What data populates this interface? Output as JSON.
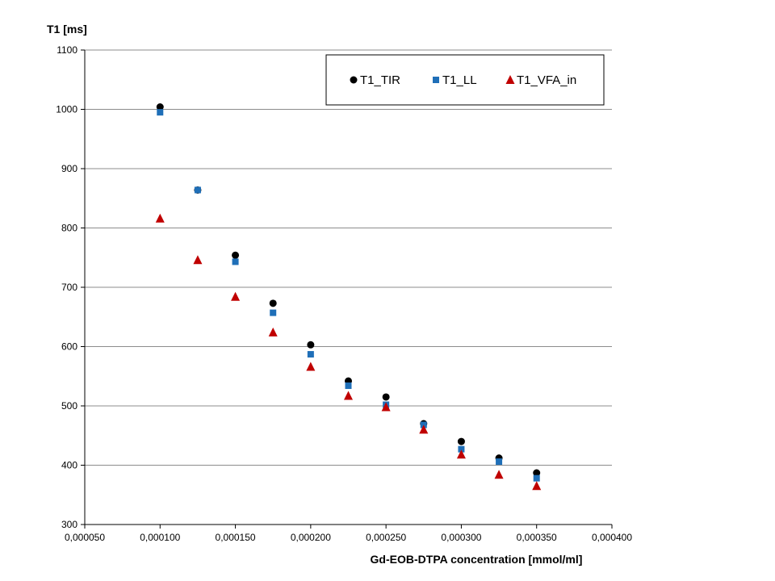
{
  "chart_data": {
    "type": "scatter",
    "xlabel": "Gd-EOB-DTPA concentration [mmol/ml]",
    "ylabel": "T1 [ms]",
    "xlim": [
      5e-05,
      0.0004
    ],
    "ylim": [
      300,
      1100
    ],
    "x_ticks": [
      "0,000050",
      "0,000100",
      "0,000150",
      "0,000200",
      "0,000250",
      "0,000300",
      "0,000350",
      "0,000400"
    ],
    "y_ticks": [
      "300",
      "400",
      "500",
      "600",
      "700",
      "800",
      "900",
      "1000",
      "1100"
    ],
    "grid": "horizontal",
    "legend_placement": "top-right",
    "x": [
      0.0001,
      0.000125,
      0.00015,
      0.000175,
      0.0002,
      0.000225,
      0.00025,
      0.000275,
      0.0003,
      0.000325,
      0.00035
    ],
    "series": [
      {
        "name": "T1_TIR",
        "marker": "circle",
        "color": "#000000",
        "values": [
          1004,
          864,
          754,
          673,
          603,
          542,
          515,
          470,
          440,
          412,
          387
        ]
      },
      {
        "name": "T1_LL",
        "marker": "square",
        "color": "#1f6fb8",
        "values": [
          995,
          864,
          743,
          657,
          587,
          534,
          502,
          468,
          427,
          406,
          378
        ]
      },
      {
        "name": "T1_VFA_in",
        "marker": "triangle",
        "color": "#c00000",
        "values": [
          816,
          746,
          684,
          624,
          566,
          517,
          498,
          460,
          418,
          384,
          365
        ]
      }
    ]
  }
}
